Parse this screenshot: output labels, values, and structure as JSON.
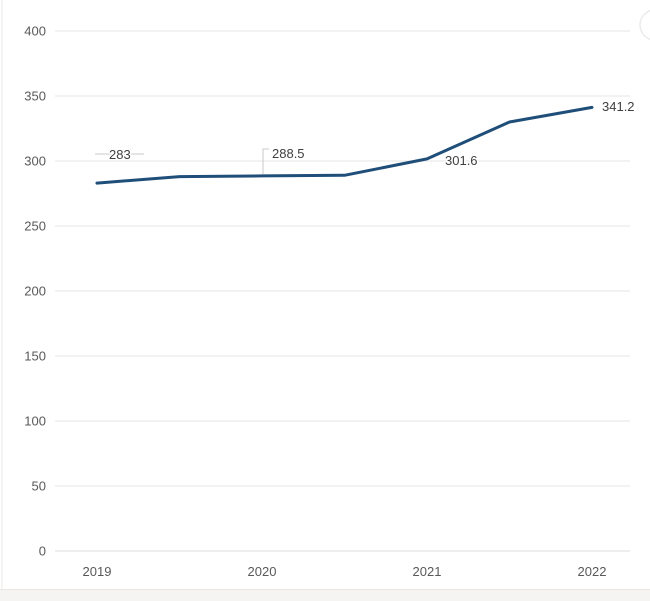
{
  "page": {
    "background": "#ffffff",
    "bottom_strip_color": "#f5f4f2"
  },
  "chart_data": {
    "type": "line",
    "title": "",
    "xlabel": "",
    "ylabel": "",
    "x": [
      2019,
      2019.5,
      2020,
      2020.5,
      2021,
      2021.5,
      2022
    ],
    "values": [
      283,
      288,
      288.5,
      289,
      301.6,
      330,
      341.2
    ],
    "x_tick_labels": [
      "2019",
      "2020",
      "2021",
      "2022"
    ],
    "x_tick_years": [
      2019,
      2020,
      2021,
      2022
    ],
    "y_tick_labels": [
      "400",
      "350",
      "300",
      "250",
      "200",
      "150",
      "100",
      "50",
      "0"
    ],
    "y_tick_values": [
      400,
      350,
      300,
      250,
      200,
      150,
      100,
      50,
      0
    ],
    "ylim": [
      0,
      415
    ],
    "grid": true,
    "legend_position": "none",
    "line_color": "#1f4e79",
    "gridline_color": "#e9e9e9",
    "axis_label_color": "#595959",
    "data_label_color": "#404040",
    "data_labels": [
      {
        "x": 2019,
        "value": 283,
        "text": "283"
      },
      {
        "x": 2020,
        "value": 288.5,
        "text": "288.5"
      },
      {
        "x": 2021,
        "value": 301.6,
        "text": "301.6"
      },
      {
        "x": 2022,
        "value": 341.2,
        "text": "341.2"
      }
    ]
  }
}
